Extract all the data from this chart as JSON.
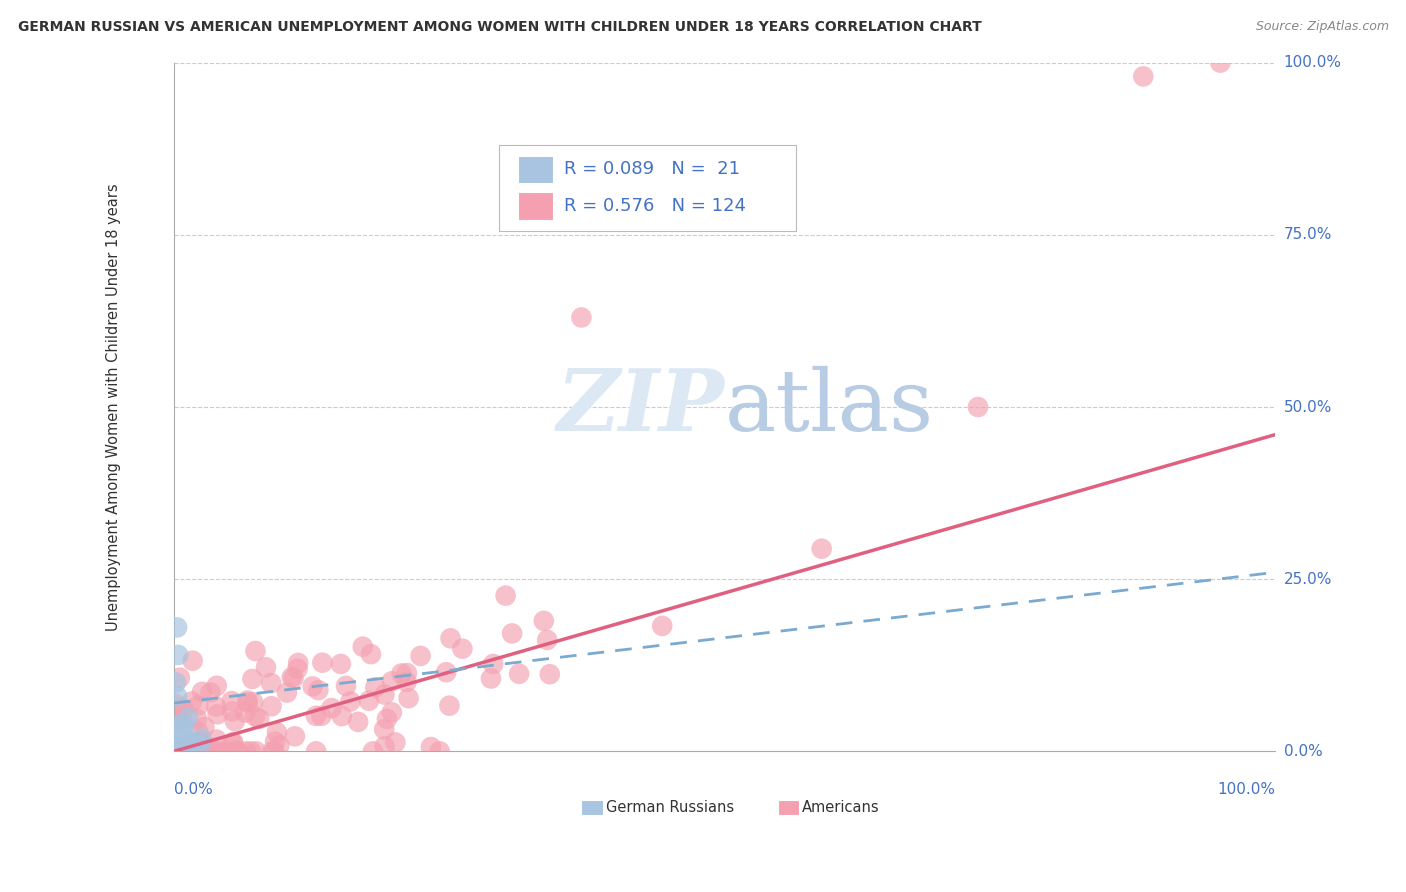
{
  "title": "GERMAN RUSSIAN VS AMERICAN UNEMPLOYMENT AMONG WOMEN WITH CHILDREN UNDER 18 YEARS CORRELATION CHART",
  "source": "Source: ZipAtlas.com",
  "ylabel": "Unemployment Among Women with Children Under 18 years",
  "legend_labels": [
    "German Russians",
    "Americans"
  ],
  "german_russian_color": "#a8c4e0",
  "american_color": "#f4a0b0",
  "german_russian_line_color": "#7aaad0",
  "american_line_color": "#e06080",
  "background_color": "#ffffff",
  "grid_color": "#cccccc",
  "R_german": 0.089,
  "N_german": 21,
  "R_american": 0.576,
  "N_american": 124,
  "axis_tick_color": "#4472c4",
  "title_color": "#333333",
  "source_color": "#888888",
  "watermark_color": "#dde8f5",
  "am_line_slope": 0.46,
  "am_line_intercept": 0.0,
  "gr_line_slope": 0.19,
  "gr_line_intercept": 0.07
}
